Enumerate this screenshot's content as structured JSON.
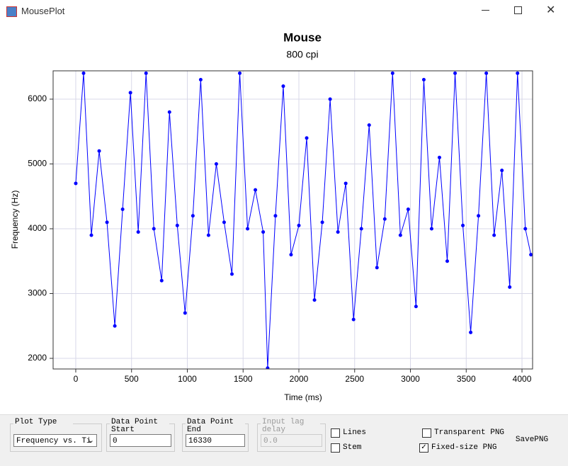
{
  "window": {
    "title": "MousePlot"
  },
  "chart_data": {
    "type": "line",
    "title": "Mouse",
    "subtitle": "800 cpi",
    "x_label": "Time (ms)",
    "y_label": "Frequency (Hz)",
    "x": [
      0,
      70,
      140,
      210,
      280,
      350,
      420,
      490,
      560,
      630,
      700,
      770,
      840,
      910,
      980,
      1050,
      1120,
      1190,
      1260,
      1330,
      1400,
      1470,
      1540,
      1610,
      1680,
      1720,
      1790,
      1860,
      1930,
      2000,
      2070,
      2140,
      2210,
      2280,
      2350,
      2420,
      2490,
      2560,
      2630,
      2700,
      2770,
      2840,
      2910,
      2980,
      3050,
      3120,
      3190,
      3260,
      3330,
      3400,
      3470,
      3540,
      3610,
      3680,
      3750,
      3820,
      3890,
      3960,
      4030,
      4080
    ],
    "series": [
      {
        "name": "Frequency",
        "color": "#0000ff",
        "values": [
          4700,
          6400,
          3900,
          5200,
          4100,
          2500,
          4300,
          6100,
          3950,
          6400,
          4000,
          3200,
          5800,
          4050,
          2700,
          4200,
          6300,
          3900,
          5000,
          4100,
          3300,
          6400,
          4000,
          4600,
          3950,
          1850,
          4200,
          6200,
          3600,
          4050,
          5400,
          2900,
          4100,
          6000,
          3950,
          4700,
          2600,
          4000,
          5600,
          3400,
          4150,
          6400,
          3900,
          4300,
          2800,
          6300,
          4000,
          5100,
          3500,
          6400,
          4050,
          2400,
          4200,
          6400,
          3900,
          4900,
          3100,
          6400,
          4000,
          3600
        ]
      }
    ],
    "xlim": [
      -203,
      4095
    ],
    "ylim": [
      1836,
      6437
    ],
    "xticks": [
      0,
      500,
      1000,
      1500,
      2000,
      2500,
      3000,
      3500,
      4000
    ],
    "yticks": [
      2000,
      3000,
      4000,
      5000,
      6000
    ],
    "grid": true
  },
  "controls": {
    "plot_type": {
      "label": "Plot Type",
      "value": "Frequency vs. Ti"
    },
    "start": {
      "label": "Data Point Start",
      "value": "0"
    },
    "end": {
      "label": "Data Point End",
      "value": "16330"
    },
    "lag": {
      "label": "Input lag delay",
      "value": "0.0"
    },
    "lines": {
      "label": "Lines",
      "checked": false
    },
    "stem": {
      "label": "Stem",
      "checked": false
    },
    "transparent": {
      "label": "Transparent PNG",
      "checked": false
    },
    "fixed_size": {
      "label": "Fixed-size PNG",
      "checked": true
    },
    "save": {
      "label": "SavePNG"
    }
  }
}
